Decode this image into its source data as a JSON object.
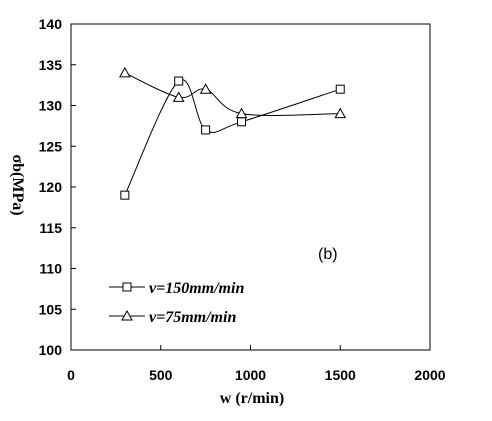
{
  "chart_data": {
    "type": "line",
    "xlabel": "w (r/min)",
    "ylabel": "σb(MPa)",
    "xlim": [
      0,
      2000
    ],
    "ylim": [
      100,
      140
    ],
    "x_ticks": [
      "0",
      "500",
      "1000",
      "1500",
      "2000"
    ],
    "y_ticks": [
      "100",
      "105",
      "110",
      "115",
      "120",
      "125",
      "130",
      "135",
      "140"
    ],
    "grid": false,
    "legend_position": "bottom-left",
    "annotation": "(b)",
    "series": [
      {
        "name": "v=150mm/min",
        "marker": "square",
        "x": [
          300,
          600,
          750,
          950,
          1500
        ],
        "y": [
          119,
          133,
          127,
          128,
          132
        ]
      },
      {
        "name": "v=75mm/min",
        "marker": "triangle",
        "x": [
          300,
          600,
          750,
          950,
          1500
        ],
        "y": [
          134,
          131,
          132,
          129,
          129
        ]
      }
    ]
  }
}
